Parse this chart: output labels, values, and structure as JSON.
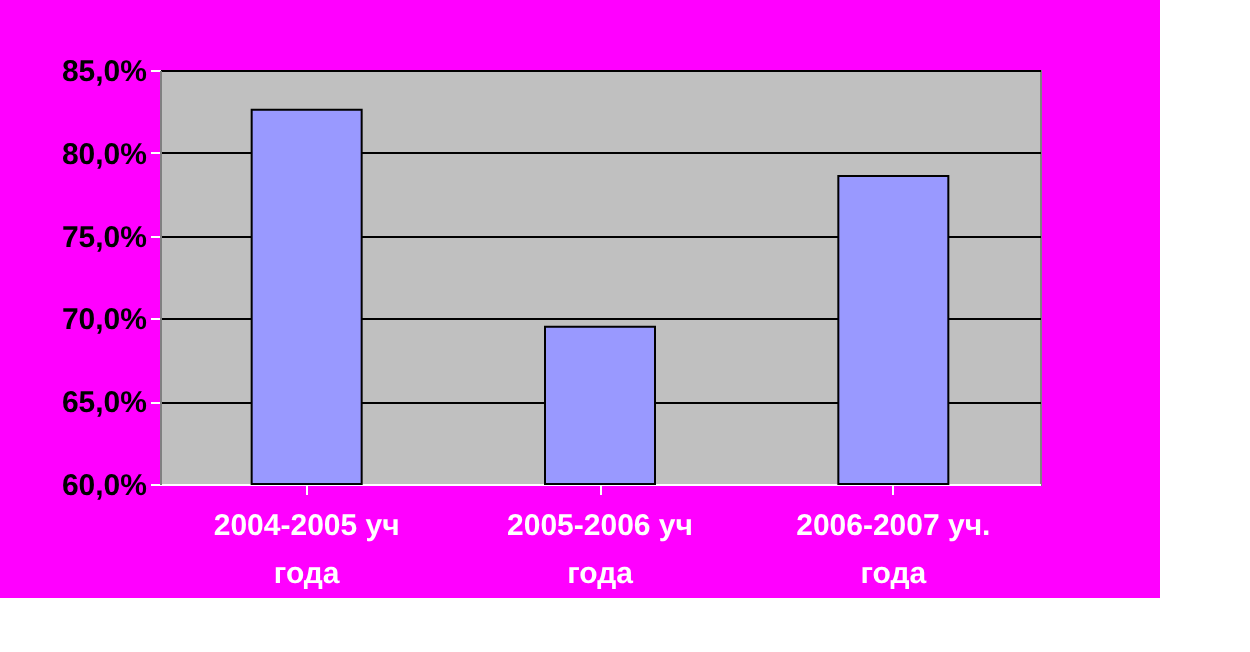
{
  "chart_data": {
    "type": "bar",
    "categories": [
      "2004-2005  уч года",
      "2005-2006  уч года",
      "2006-2007 уч. года"
    ],
    "values": [
      82.6,
      69.5,
      78.6
    ],
    "color": "#9999ff",
    "ylim": [
      60,
      85
    ],
    "yticks": [
      {
        "value": 60,
        "label": "60,0%"
      },
      {
        "value": 65,
        "label": "65,0%"
      },
      {
        "value": 70,
        "label": "70,0%"
      },
      {
        "value": 75,
        "label": "75,0%"
      },
      {
        "value": 80,
        "label": "80,0%"
      },
      {
        "value": 85,
        "label": "85,0%"
      }
    ],
    "grid": "y"
  }
}
